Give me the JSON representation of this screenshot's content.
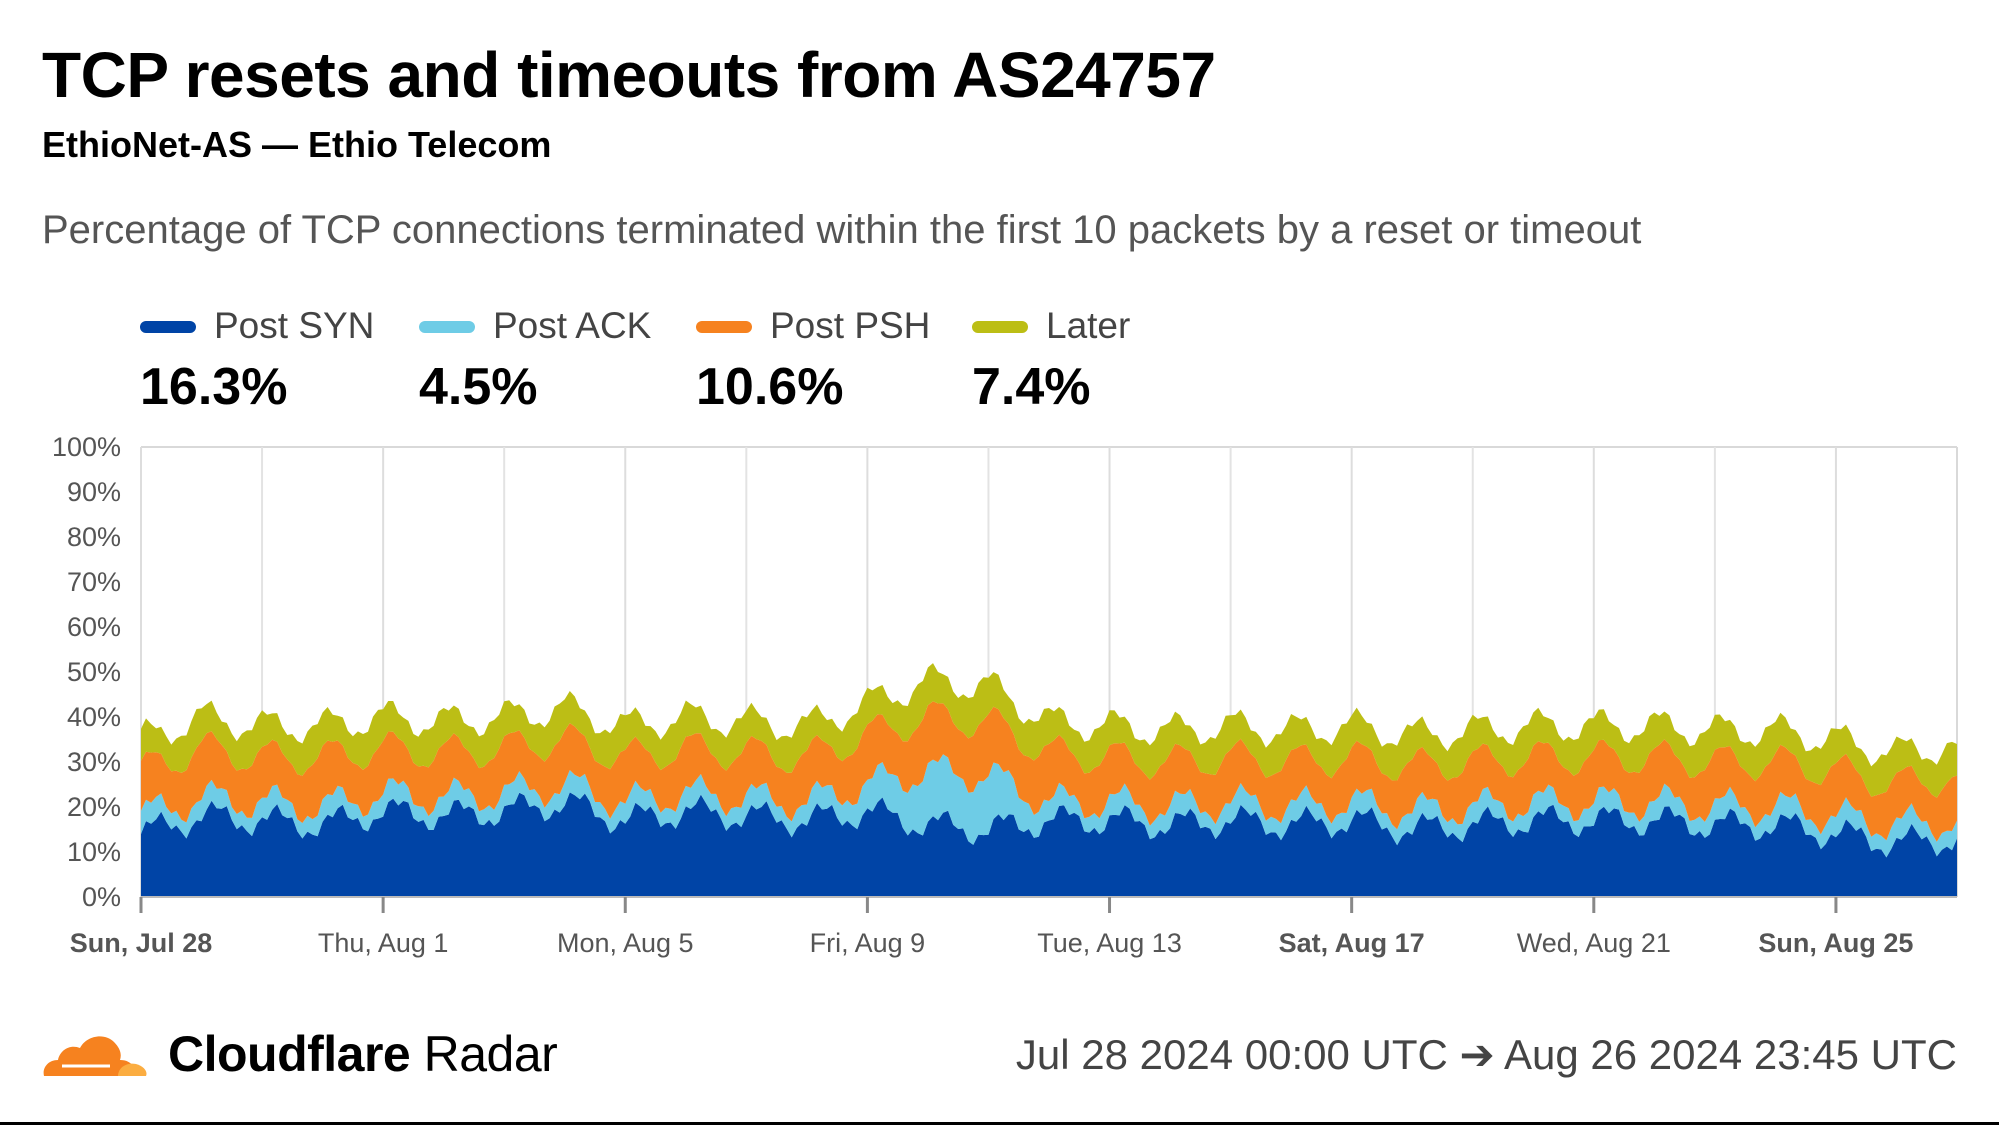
{
  "header": {
    "title": "TCP resets and timeouts from AS24757",
    "subtitle": "EthioNet-AS — Ethio Telecom",
    "description": "Percentage of TCP connections terminated within the first 10 packets by a reset or timeout"
  },
  "legend": [
    {
      "label": "Post SYN",
      "value": "16.3%",
      "color": "#0044a6"
    },
    {
      "label": "Post ACK",
      "value": "4.5%",
      "color": "#6ecce6"
    },
    {
      "label": "Post PSH",
      "value": "10.6%",
      "color": "#f6821f"
    },
    {
      "label": "Later",
      "value": "7.4%",
      "color": "#bcbe15"
    }
  ],
  "chart_data": {
    "type": "area",
    "stacked": true,
    "ylim": [
      0,
      100
    ],
    "yticks": [
      "0%",
      "10%",
      "20%",
      "30%",
      "40%",
      "50%",
      "60%",
      "70%",
      "80%",
      "90%",
      "100%"
    ],
    "x_range": [
      "2024-07-28",
      "2024-08-27"
    ],
    "xticks": [
      {
        "label": "Sun, Jul 28",
        "day": 0,
        "bold": true
      },
      {
        "label": "Thu, Aug 1",
        "day": 4,
        "bold": false
      },
      {
        "label": "Mon, Aug 5",
        "day": 8,
        "bold": false
      },
      {
        "label": "Fri, Aug 9",
        "day": 12,
        "bold": false
      },
      {
        "label": "Tue, Aug 13",
        "day": 16,
        "bold": false
      },
      {
        "label": "Sat, Aug 17",
        "day": 20,
        "bold": true
      },
      {
        "label": "Wed, Aug 21",
        "day": 24,
        "bold": false
      },
      {
        "label": "Sun, Aug 25",
        "day": 28,
        "bold": true
      }
    ],
    "x": [
      "Jul 28",
      "Jul 29",
      "Jul 30",
      "Jul 31",
      "Aug 1",
      "Aug 2",
      "Aug 3",
      "Aug 4",
      "Aug 5",
      "Aug 6",
      "Aug 7",
      "Aug 8",
      "Aug 9",
      "Aug 10",
      "Aug 11",
      "Aug 12",
      "Aug 13",
      "Aug 14",
      "Aug 15",
      "Aug 16",
      "Aug 17",
      "Aug 18",
      "Aug 19",
      "Aug 20",
      "Aug 21",
      "Aug 22",
      "Aug 23",
      "Aug 24",
      "Aug 25",
      "Aug 26",
      "Aug 27"
    ],
    "series": [
      {
        "name": "Post SYN",
        "color": "#0044a6",
        "values": [
          14,
          18,
          17,
          16,
          19,
          18,
          19,
          21,
          17,
          19,
          18,
          17,
          19,
          16,
          15,
          17,
          17,
          16,
          17,
          16,
          17,
          15,
          16,
          17,
          17,
          17,
          16,
          16,
          14,
          12,
          13
        ]
      },
      {
        "name": "Post ACK",
        "color": "#6ecce6",
        "values": [
          4,
          4,
          4,
          4,
          4,
          4,
          4,
          4,
          4,
          4,
          4,
          4,
          6,
          12,
          12,
          4,
          4,
          4,
          4,
          4,
          4,
          4,
          4,
          4,
          4,
          4,
          4,
          4,
          4,
          4,
          4
        ]
      },
      {
        "name": "Post PSH",
        "color": "#f6821f",
        "values": [
          10,
          11,
          10,
          11,
          10,
          10,
          10,
          10,
          10,
          10,
          10,
          10,
          11,
          12,
          12,
          11,
          10,
          10,
          10,
          10,
          10,
          10,
          10,
          10,
          10,
          10,
          10,
          10,
          10,
          9,
          10
        ]
      },
      {
        "name": "Later",
        "color": "#bcbe15",
        "values": [
          7,
          7,
          7,
          7,
          7,
          7,
          7,
          7,
          7,
          7,
          7,
          7,
          7,
          8,
          8,
          7,
          7,
          7,
          7,
          7,
          7,
          7,
          7,
          7,
          7,
          7,
          7,
          7,
          7,
          7,
          7
        ]
      }
    ],
    "grid": true
  },
  "footer": {
    "brand_bold": "Cloudflare",
    "brand_light": " Radar",
    "date_range": "Jul 28 2024 00:00 UTC ➔ Aug 26 2024 23:45 UTC",
    "logo_color": "#f6821f"
  }
}
